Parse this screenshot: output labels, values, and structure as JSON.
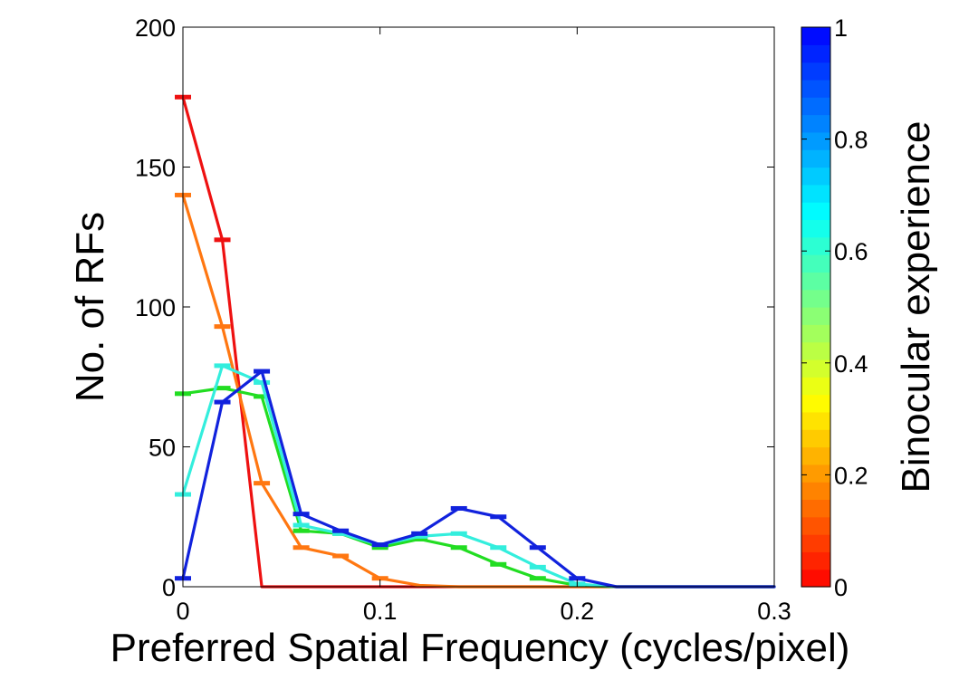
{
  "chart_data": {
    "type": "line",
    "title": "",
    "xlabel": "Preferred Spatial Frequency (cycles/pixel)",
    "ylabel": "No. of RFs",
    "xlim": [
      0,
      0.3
    ],
    "ylim": [
      0,
      200
    ],
    "xticks": [
      0,
      0.1,
      0.2,
      0.3
    ],
    "xtick_labels": [
      "0",
      "0.1",
      "0.2",
      "0.3"
    ],
    "yticks": [
      0,
      50,
      100,
      150,
      200
    ],
    "ytick_labels": [
      "0",
      "50",
      "100",
      "150",
      "200"
    ],
    "grid": false,
    "x": [
      0,
      0.02,
      0.04,
      0.06,
      0.08,
      0.1,
      0.12,
      0.14,
      0.16,
      0.18,
      0.2,
      0.22,
      0.24,
      0.26,
      0.28,
      0.3
    ],
    "series": [
      {
        "color": "#ee1111",
        "values": [
          175,
          124,
          0,
          0,
          0,
          0,
          0,
          0,
          0,
          0,
          0,
          0,
          0,
          0,
          0,
          0
        ]
      },
      {
        "color": "#ff7711",
        "values": [
          140,
          93,
          37,
          14,
          11,
          3,
          0.5,
          0,
          0,
          0,
          0,
          0,
          0,
          0,
          0,
          0
        ]
      },
      {
        "color": "#22dd22",
        "values": [
          69,
          71,
          68,
          20,
          19,
          14,
          17,
          14,
          8,
          3,
          0.5,
          0,
          0,
          0,
          0,
          0
        ]
      },
      {
        "color": "#33eedd",
        "values": [
          33,
          79,
          73,
          22,
          19,
          15,
          18,
          19,
          14,
          7,
          1,
          0,
          0,
          0,
          0,
          0
        ]
      },
      {
        "color": "#1122dd",
        "values": [
          3,
          66,
          77,
          26,
          20,
          15,
          19,
          28,
          25,
          14,
          3,
          0,
          0,
          0,
          0,
          0
        ]
      }
    ],
    "colorbar": {
      "label": "Binocular experience",
      "range": [
        0,
        1
      ],
      "ticks": [
        0,
        0.2,
        0.4,
        0.6,
        0.8,
        1
      ],
      "tick_labels": [
        "0",
        "0.2",
        "0.4",
        "0.6",
        "0.8",
        "1"
      ],
      "colormap": "jet",
      "steps": 32
    }
  }
}
